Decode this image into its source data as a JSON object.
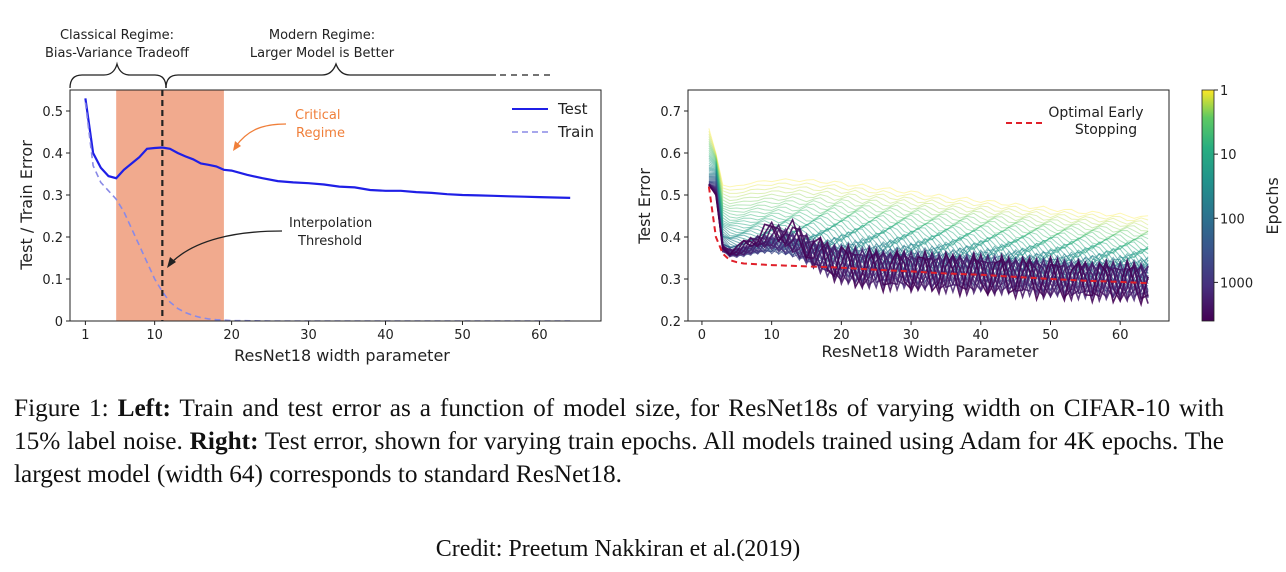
{
  "caption": {
    "figure_label": "Figure 1:",
    "left_label": "Left:",
    "left_text": "Train and test error as a function of model size, for ResNet18s of varying width on CIFAR-10 with 15% label noise.",
    "right_label": "Right:",
    "right_text": "Test error, shown for varying train epochs. All models trained using Adam for 4K epochs. The largest model (width 64) corresponds to standard ResNet18."
  },
  "credit": "Credit: Preetum Nakkiran et al.(2019)",
  "chart_data": [
    {
      "type": "line",
      "xlabel": "ResNet18 width parameter",
      "ylabel": "Test / Train Error",
      "xlim": [
        -1,
        68
      ],
      "ylim": [
        0.0,
        0.55
      ],
      "xticks": [
        1,
        10,
        20,
        30,
        40,
        50,
        60
      ],
      "yticks": [
        0.0,
        0.1,
        0.2,
        0.3,
        0.4,
        0.5
      ],
      "legend": "top-right",
      "grid": false,
      "series": [
        {
          "name": "Test",
          "color": "#1f1fe6",
          "style": "solid",
          "x": [
            1,
            2,
            3,
            4,
            5,
            6,
            7,
            8,
            9,
            10,
            11,
            12,
            13,
            14,
            15,
            16,
            17,
            18,
            19,
            20,
            22,
            24,
            26,
            28,
            30,
            32,
            34,
            36,
            38,
            40,
            42,
            44,
            46,
            48,
            50,
            52,
            54,
            56,
            58,
            60,
            62,
            64
          ],
          "y": [
            0.53,
            0.4,
            0.365,
            0.345,
            0.34,
            0.36,
            0.375,
            0.39,
            0.41,
            0.412,
            0.413,
            0.41,
            0.4,
            0.392,
            0.385,
            0.375,
            0.372,
            0.368,
            0.36,
            0.358,
            0.348,
            0.34,
            0.333,
            0.33,
            0.328,
            0.325,
            0.32,
            0.318,
            0.312,
            0.31,
            0.31,
            0.307,
            0.305,
            0.302,
            0.3,
            0.299,
            0.298,
            0.297,
            0.296,
            0.295,
            0.294,
            0.293
          ]
        },
        {
          "name": "Train",
          "color": "#8a8ae6",
          "style": "dashed",
          "x": [
            1,
            2,
            3,
            4,
            5,
            6,
            7,
            8,
            9,
            10,
            11,
            12,
            13,
            14,
            15,
            16,
            17,
            18,
            19,
            20,
            25,
            30,
            40,
            50,
            64
          ],
          "y": [
            0.52,
            0.37,
            0.33,
            0.31,
            0.29,
            0.26,
            0.22,
            0.18,
            0.14,
            0.1,
            0.07,
            0.045,
            0.03,
            0.02,
            0.013,
            0.008,
            0.005,
            0.003,
            0.002,
            0.001,
            0.0,
            0.0,
            0.0,
            0.0,
            0.0
          ]
        }
      ],
      "regions": [
        {
          "name": "Critical Regime",
          "x": [
            5,
            19
          ],
          "color": "#ef9b7a"
        }
      ],
      "vlines": [
        {
          "name": "Interpolation Threshold",
          "x": 11,
          "style": "dashed",
          "color": "#222222"
        }
      ],
      "annotations": {
        "critical_line1": "Critical",
        "critical_line2": "Regime",
        "interp_line1": "Interpolation",
        "interp_line2": "Threshold",
        "classical_line1": "Classical Regime:",
        "classical_line2": "Bias-Variance Tradeoff",
        "modern_line1": "Modern Regime:",
        "modern_line2": "Larger Model is Better"
      }
    },
    {
      "type": "line",
      "xlabel": "ResNet18 Width Parameter",
      "ylabel": "Test Error",
      "xlim": [
        -2,
        67
      ],
      "ylim": [
        0.2,
        0.75
      ],
      "xticks": [
        0,
        10,
        20,
        30,
        40,
        50,
        60
      ],
      "yticks": [
        0.2,
        0.3,
        0.4,
        0.5,
        0.6,
        0.7
      ],
      "legend": "top-right",
      "grid": false,
      "series_family": {
        "description": "one curve per train epoch count",
        "colormap": "viridis",
        "epochs_range": [
          1,
          4000
        ]
      },
      "series": [
        {
          "name": "Optimal Early Stopping",
          "color": "#e0202a",
          "style": "dashed",
          "x": [
            1,
            2,
            3,
            4,
            5,
            6,
            8,
            10,
            12,
            15,
            20,
            25,
            30,
            35,
            40,
            45,
            50,
            55,
            60,
            64
          ],
          "y": [
            0.52,
            0.4,
            0.36,
            0.345,
            0.34,
            0.337,
            0.335,
            0.333,
            0.332,
            0.33,
            0.327,
            0.322,
            0.318,
            0.313,
            0.31,
            0.305,
            0.3,
            0.296,
            0.293,
            0.29
          ]
        }
      ],
      "colorbar": {
        "label": "Epochs",
        "scale": "log",
        "ticks": [
          "1",
          "10",
          "100",
          "1000"
        ]
      }
    }
  ]
}
